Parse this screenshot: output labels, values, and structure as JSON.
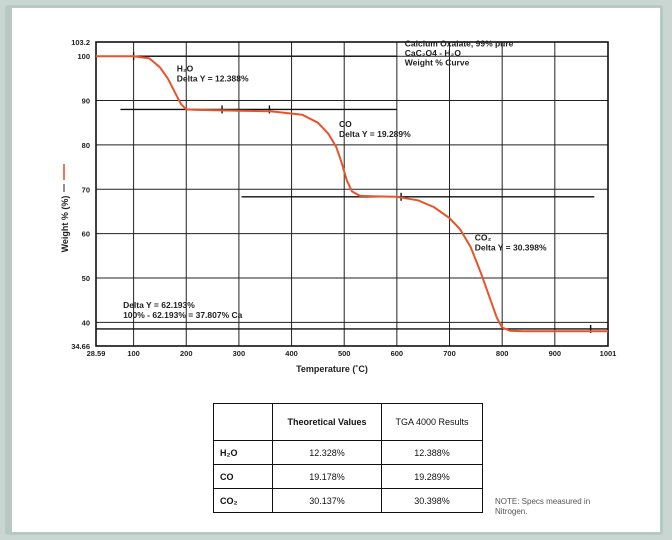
{
  "chart_data": {
    "type": "line",
    "title": "",
    "xlabel": "Temperature (˚C)",
    "ylabel": "Weight % (%)",
    "xlim": [
      28.59,
      1001
    ],
    "ylim": [
      34.66,
      103.2
    ],
    "x_ticks": [
      "28.59",
      "100",
      "200",
      "300",
      "400",
      "500",
      "600",
      "700",
      "800",
      "900",
      "1001"
    ],
    "x_tick_values": [
      28.59,
      100,
      200,
      300,
      400,
      500,
      600,
      700,
      800,
      900,
      1001
    ],
    "y_ticks": [
      "34.66",
      "40",
      "50",
      "60",
      "70",
      "80",
      "90",
      "100",
      "103.2"
    ],
    "y_tick_values": [
      34.66,
      40,
      50,
      60,
      70,
      80,
      90,
      100,
      103.2
    ],
    "grid": true,
    "color": "#e8542a",
    "series": [
      {
        "x": [
          28.59,
          100,
          130,
          150,
          165,
          180,
          190,
          200,
          220,
          260,
          300,
          360,
          420,
          450,
          470,
          485,
          495,
          505,
          515,
          530,
          560,
          600,
          640,
          670,
          700,
          720,
          740,
          760,
          775,
          790,
          800,
          815,
          840,
          900,
          1001
        ],
        "y": [
          100.0,
          100.0,
          99.5,
          97.5,
          95.0,
          91.5,
          89.2,
          88.0,
          87.9,
          87.8,
          87.7,
          87.6,
          86.8,
          85.0,
          82.5,
          79.5,
          76.0,
          72.0,
          69.5,
          68.5,
          68.4,
          68.3,
          67.5,
          66.0,
          63.5,
          61.0,
          57.0,
          51.0,
          46.0,
          41.0,
          38.8,
          38.1,
          38.0,
          38.0,
          38.0
        ]
      }
    ],
    "annotations": [
      {
        "lines": [
          "Calcium Oxalate, 99% pure",
          "CaC₂O4 - H₂O",
          "Weight % Curve"
        ]
      },
      {
        "lines": [
          "H₂O",
          "Delta Y = 12.388%"
        ]
      },
      {
        "lines": [
          "CO",
          "Delta Y = 19.289%"
        ]
      },
      {
        "lines": [
          "CO₂",
          "Delta Y = 30.398%"
        ]
      },
      {
        "lines": [
          "Delta Y = 62.193%",
          "100% - 62.193% = 37.807% Ca"
        ]
      }
    ],
    "step_lines": [
      {
        "x1": 28.59,
        "x2": 600,
        "y": 100
      },
      {
        "x1": 75,
        "x2": 600,
        "y": 88
      },
      {
        "x1": 305,
        "x2": 975,
        "y": 68.3
      },
      {
        "x1": 28.59,
        "x2": 1001,
        "y": 38.5
      }
    ],
    "step_marks": [
      {
        "x": 100,
        "y": 100
      },
      {
        "x": 268,
        "y": 88
      },
      {
        "x": 358,
        "y": 88
      },
      {
        "x": 608,
        "y": 68.3
      },
      {
        "x": 968,
        "y": 38.5
      }
    ]
  },
  "table": {
    "headers": [
      "",
      "Theoretical Values",
      "TGA 4000 Results"
    ],
    "rows": [
      {
        "species": "H₂O",
        "theoretical": "12.328%",
        "result": "12.388%"
      },
      {
        "species": "CO",
        "theoretical": "19.178%",
        "result": "19.289%"
      },
      {
        "species": "CO₂",
        "theoretical": "30.137%",
        "result": "30.398%"
      }
    ]
  },
  "note": "NOTE: Specs measured in Nitrogen."
}
